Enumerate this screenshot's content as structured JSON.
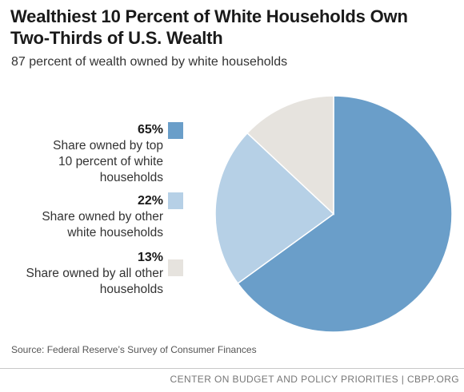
{
  "chart_data": {
    "type": "pie",
    "title_line1": "Wealthiest 10 Percent of White Households Own",
    "title_line2": "Two-Thirds of U.S. Wealth",
    "subtitle": "87 percent of wealth owned by white households",
    "slices": [
      {
        "value": 65,
        "label_pct": "65%",
        "label_lines": [
          "Share owned by top",
          "10 percent of white",
          "households"
        ],
        "color": "#6a9ec9"
      },
      {
        "value": 22,
        "label_pct": "22%",
        "label_lines": [
          "Share owned by other",
          "white households"
        ],
        "color": "#b6d0e6"
      },
      {
        "value": 13,
        "label_pct": "13%",
        "label_lines": [
          "Share owned by all other",
          "households"
        ],
        "color": "#e6e3de"
      }
    ],
    "legend_position": "left"
  },
  "source": "Source: Federal Reserve’s Survey of Consumer Finances",
  "credit": "CENTER ON BUDGET AND POLICY PRIORITIES | CBPP.ORG"
}
